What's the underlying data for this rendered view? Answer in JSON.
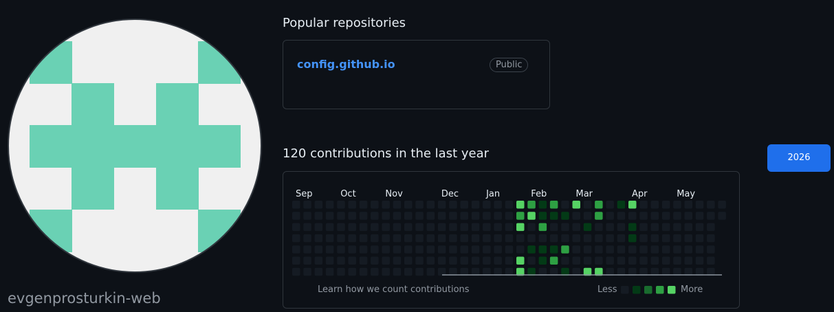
{
  "username": "evgenprosturkin-web",
  "repositories": {
    "title": "Popular repositories",
    "items": [
      {
        "name": "config.github.io",
        "visibility": "Public"
      }
    ]
  },
  "contributions": {
    "title": "120 contributions in the last year",
    "months": [
      "Sep",
      "Oct",
      "Nov",
      "Dec",
      "Jan",
      "Feb",
      "Mar",
      "Apr",
      "May"
    ],
    "weeks": [
      [
        0,
        0,
        0,
        0,
        0,
        0,
        0
      ],
      [
        0,
        0,
        0,
        0,
        0,
        0,
        0
      ],
      [
        0,
        0,
        0,
        0,
        0,
        0,
        0
      ],
      [
        0,
        0,
        0,
        0,
        0,
        0,
        0
      ],
      [
        0,
        0,
        0,
        0,
        0,
        0,
        0
      ],
      [
        0,
        0,
        0,
        0,
        0,
        0,
        0
      ],
      [
        0,
        0,
        0,
        0,
        0,
        0,
        0
      ],
      [
        0,
        0,
        0,
        0,
        0,
        0,
        0
      ],
      [
        0,
        0,
        0,
        0,
        0,
        0,
        0
      ],
      [
        0,
        0,
        0,
        0,
        0,
        0,
        0
      ],
      [
        0,
        0,
        0,
        0,
        0,
        0,
        0
      ],
      [
        0,
        0,
        0,
        0,
        0,
        0,
        0
      ],
      [
        0,
        0,
        0,
        0,
        0,
        0,
        0
      ],
      [
        0,
        0,
        0,
        0,
        0,
        0,
        0
      ],
      [
        0,
        0,
        0,
        0,
        0,
        0,
        0
      ],
      [
        0,
        0,
        0,
        0,
        0,
        0,
        0
      ],
      [
        0,
        0,
        0,
        0,
        0,
        0,
        0
      ],
      [
        0,
        0,
        0,
        0,
        0,
        0,
        0
      ],
      [
        0,
        0,
        0,
        0,
        0,
        0,
        0
      ],
      [
        0,
        0,
        0,
        0,
        0,
        0,
        0
      ],
      [
        4,
        3,
        4,
        0,
        0,
        4,
        4
      ],
      [
        3,
        4,
        0,
        0,
        1,
        0,
        1
      ],
      [
        1,
        1,
        3,
        0,
        1,
        1,
        0
      ],
      [
        3,
        1,
        0,
        0,
        1,
        3,
        0
      ],
      [
        0,
        1,
        0,
        0,
        3,
        0,
        1
      ],
      [
        4,
        0,
        0,
        0,
        0,
        0,
        0
      ],
      [
        0,
        0,
        1,
        0,
        0,
        0,
        4
      ],
      [
        3,
        3,
        0,
        0,
        0,
        0,
        4
      ],
      [
        0,
        0,
        0,
        0,
        0,
        0,
        0
      ],
      [
        1,
        0,
        0,
        0,
        0,
        0,
        0
      ],
      [
        4,
        0,
        1,
        1,
        0,
        0,
        0
      ],
      [
        0,
        0,
        0,
        0,
        0,
        0,
        0
      ],
      [
        0,
        0,
        0,
        0,
        0,
        0,
        0
      ],
      [
        0,
        0,
        0,
        0,
        0,
        0,
        0
      ],
      [
        0,
        0,
        0,
        0,
        0,
        0,
        0
      ],
      [
        0,
        0,
        0,
        0,
        0,
        0,
        0
      ],
      [
        0,
        0,
        0,
        0,
        0,
        0,
        0
      ],
      [
        0,
        0,
        0,
        0,
        0,
        0,
        0
      ],
      [
        0,
        0
      ]
    ],
    "level_colors": [
      "#151b23",
      "#033a16",
      "#196c2e",
      "#2ea043",
      "#56d364"
    ],
    "learn_link": "Learn how we count contributions",
    "legend_less": "Less",
    "legend_more": "More",
    "legend_levels": [
      0,
      1,
      2,
      3,
      4
    ]
  },
  "year": "2026"
}
